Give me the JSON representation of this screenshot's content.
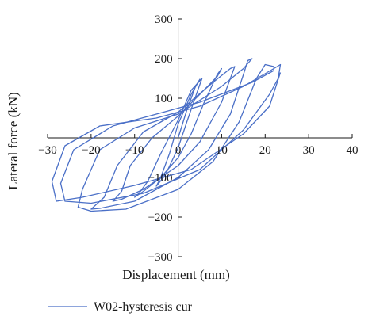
{
  "chart_data": {
    "type": "line",
    "title": "",
    "xlabel": "Displacement (mm)",
    "ylabel": "Lateral force (kN)",
    "xlim": [
      -30,
      40
    ],
    "ylim": [
      -300,
      300
    ],
    "x_ticks": [
      -30,
      -20,
      -10,
      0,
      10,
      20,
      30,
      40
    ],
    "y_ticks": [
      -300,
      -200,
      -100,
      0,
      100,
      200,
      300
    ],
    "grid": false,
    "legend_position": "bottom-left",
    "series_color": "#4a6fc7",
    "series": [
      {
        "name": "W02-hysteresis cur",
        "loops": [
          {
            "points": [
              [
                0,
                0
              ],
              [
                2,
                70
              ],
              [
                4,
                130
              ],
              [
                5,
                148
              ],
              [
                3,
                110
              ],
              [
                0,
                35
              ],
              [
                -2,
                -40
              ],
              [
                -4,
                -100
              ],
              [
                -5,
                -122
              ],
              [
                -3,
                -95
              ],
              [
                0,
                -25
              ],
              [
                2,
                40
              ],
              [
                4.5,
                120
              ],
              [
                5.5,
                150
              ]
            ]
          },
          {
            "points": [
              [
                5.5,
                150
              ],
              [
                3,
                120
              ],
              [
                0,
                45
              ],
              [
                -4,
                -40
              ],
              [
                -7,
                -110
              ],
              [
                -9,
                -140
              ],
              [
                -10,
                -150
              ],
              [
                -8,
                -135
              ],
              [
                -4,
                -100
              ],
              [
                0,
                -50
              ],
              [
                3,
                10
              ],
              [
                6,
                90
              ],
              [
                9,
                160
              ]
            ]
          },
          {
            "points": [
              [
                9,
                160
              ],
              [
                10,
                175
              ],
              [
                9,
                155
              ],
              [
                5,
                110
              ],
              [
                0,
                55
              ],
              [
                -6,
                0
              ],
              [
                -11,
                -70
              ],
              [
                -13,
                -135
              ],
              [
                -15,
                -160
              ],
              [
                -13,
                -155
              ],
              [
                -8,
                -130
              ],
              [
                0,
                -70
              ],
              [
                5,
                -10
              ],
              [
                10,
                90
              ],
              [
                12,
                150
              ]
            ]
          },
          {
            "points": [
              [
                12,
                150
              ],
              [
                13,
                180
              ],
              [
                12,
                175
              ],
              [
                8,
                140
              ],
              [
                0,
                65
              ],
              [
                -8,
                15
              ],
              [
                -14,
                -70
              ],
              [
                -17,
                -150
              ],
              [
                -20,
                -180
              ],
              [
                -18,
                -178
              ],
              [
                -10,
                -160
              ],
              [
                0,
                -100
              ],
              [
                7,
                -30
              ],
              [
                12,
                60
              ],
              [
                15,
                160
              ]
            ]
          },
          {
            "points": [
              [
                15,
                160
              ],
              [
                16,
                195
              ],
              [
                17,
                200
              ],
              [
                15,
                175
              ],
              [
                10,
                130
              ],
              [
                0,
                60
              ],
              [
                -10,
                25
              ],
              [
                -18,
                -30
              ],
              [
                -22,
                -130
              ],
              [
                -23,
                -175
              ],
              [
                -20,
                -185
              ],
              [
                -12,
                -180
              ],
              [
                0,
                -130
              ],
              [
                8,
                -60
              ],
              [
                14,
                40
              ],
              [
                18,
                150
              ]
            ]
          },
          {
            "points": [
              [
                18,
                150
              ],
              [
                20,
                185
              ],
              [
                22,
                180
              ],
              [
                22,
                170
              ],
              [
                17,
                140
              ],
              [
                5,
                90
              ],
              [
                -5,
                60
              ],
              [
                -15,
                30
              ],
              [
                -24,
                -30
              ],
              [
                -27,
                -115
              ],
              [
                -26,
                -160
              ],
              [
                -20,
                -165
              ],
              [
                -8,
                -140
              ],
              [
                5,
                -80
              ],
              [
                15,
                20
              ],
              [
                21,
                110
              ],
              [
                23,
                150
              ]
            ]
          },
          {
            "points": [
              [
                23,
                150
              ],
              [
                23.5,
                185
              ],
              [
                22,
                175
              ],
              [
                15,
                130
              ],
              [
                5,
                80
              ],
              [
                -5,
                50
              ],
              [
                -18,
                30
              ],
              [
                -26,
                -20
              ],
              [
                -29,
                -110
              ],
              [
                -28,
                -160
              ],
              [
                -22,
                -150
              ],
              [
                -10,
                -120
              ],
              [
                3,
                -80
              ],
              [
                15,
                10
              ],
              [
                21,
                80
              ],
              [
                23.5,
                165
              ]
            ]
          }
        ]
      }
    ]
  }
}
